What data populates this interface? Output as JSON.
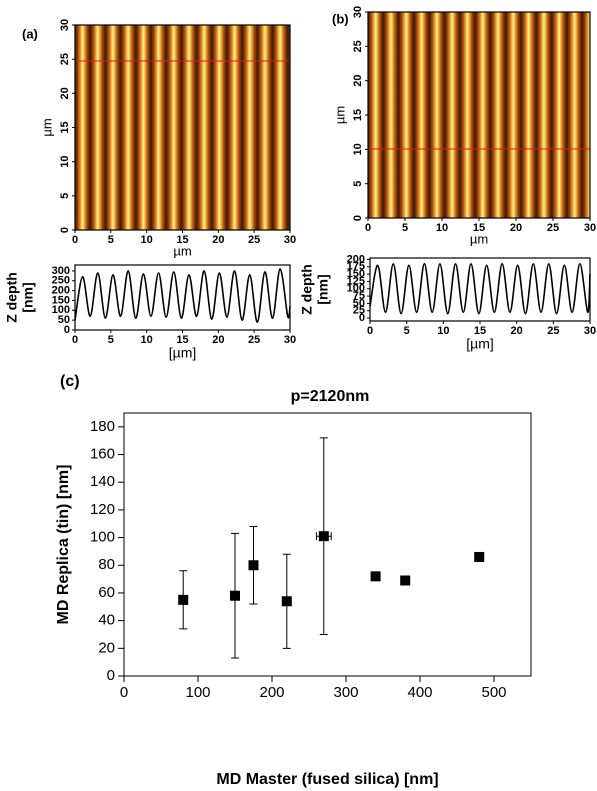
{
  "chart_data": [
    {
      "type": "image",
      "label": "(a)",
      "xlabel": "µm",
      "ylabel": "µm",
      "xlim": [
        0,
        30
      ],
      "ylim": [
        0,
        30
      ],
      "xticks": [
        0,
        5,
        10,
        15,
        20,
        25,
        30
      ],
      "yticks": [
        0,
        5,
        10,
        15,
        20,
        25,
        30
      ]
    },
    {
      "type": "line",
      "xlabel": "[µm]",
      "ylabel": [
        "Z depth",
        "[nm]"
      ],
      "x": [
        0,
        1.06,
        2.12,
        3.18,
        4.24,
        5.3,
        6.36,
        7.42,
        8.48,
        9.54,
        10.6,
        11.66,
        12.72,
        13.78,
        14.84,
        15.9,
        16.96,
        18.02,
        19.08,
        20.14,
        21.2,
        22.26,
        23.32,
        24.38,
        25.44,
        26.5,
        27.56,
        28.62,
        29.68,
        30
      ],
      "values": [
        50,
        270,
        70,
        290,
        60,
        280,
        70,
        300,
        60,
        285,
        70,
        290,
        65,
        295,
        60,
        280,
        70,
        300,
        55,
        290,
        65,
        300,
        50,
        280,
        40,
        295,
        60,
        310,
        70,
        120
      ],
      "color": "#000000",
      "xlim": [
        0,
        30
      ],
      "ylim": [
        0,
        330
      ],
      "xticks": [
        0,
        5,
        10,
        15,
        20,
        25,
        30
      ],
      "yticks": [
        0,
        50,
        100,
        150,
        200,
        250,
        300
      ]
    },
    {
      "type": "image",
      "label": "(b)",
      "xlabel": "µm",
      "ylabel": "µm",
      "xlim": [
        0,
        30
      ],
      "ylim": [
        0,
        30
      ],
      "xticks": [
        0,
        5,
        10,
        15,
        20,
        25,
        30
      ],
      "yticks": [
        0,
        5,
        10,
        15,
        20,
        25,
        30
      ]
    },
    {
      "type": "line",
      "xlabel": "[µm]",
      "ylabel": [
        "Z depth",
        "[nm]"
      ],
      "x": [
        0,
        1.06,
        2.12,
        3.18,
        4.24,
        5.3,
        6.36,
        7.42,
        8.48,
        9.54,
        10.6,
        11.66,
        12.72,
        13.78,
        14.84,
        15.9,
        16.96,
        18.02,
        19.08,
        20.14,
        21.2,
        22.26,
        23.32,
        24.38,
        25.44,
        26.5,
        27.56,
        28.62,
        29.68,
        30
      ],
      "values": [
        40,
        180,
        20,
        185,
        15,
        180,
        20,
        185,
        20,
        185,
        15,
        185,
        20,
        185,
        15,
        180,
        20,
        185,
        20,
        180,
        15,
        185,
        20,
        185,
        15,
        180,
        20,
        185,
        20,
        150
      ],
      "color": "#000000",
      "xlim": [
        0,
        30
      ],
      "ylim": [
        -10,
        205
      ],
      "xticks": [
        0,
        5,
        10,
        15,
        20,
        25,
        30
      ],
      "yticks": [
        0,
        25,
        50,
        75,
        100,
        125,
        150,
        175,
        200
      ]
    },
    {
      "type": "scatter",
      "label": "(c)",
      "title": "p=2120nm",
      "xlabel": "MD Master (fused silica) [nm]",
      "ylabel": "MD Replica (tin) [nm]",
      "x": [
        80,
        150,
        175,
        220,
        270,
        340,
        380,
        480
      ],
      "values": [
        55,
        58,
        80,
        54,
        101,
        72,
        69,
        86
      ],
      "errors": [
        21,
        45,
        28,
        34,
        71,
        null,
        null,
        null
      ],
      "xerrors": [
        null,
        null,
        null,
        null,
        10,
        null,
        null,
        null
      ],
      "color": "#000000",
      "xlim": [
        0,
        550
      ],
      "ylim": [
        0,
        190
      ],
      "xticks": [
        0,
        100,
        200,
        300,
        400,
        500
      ],
      "yticks": [
        0,
        20,
        40,
        60,
        80,
        100,
        120,
        140,
        160,
        180
      ]
    }
  ]
}
